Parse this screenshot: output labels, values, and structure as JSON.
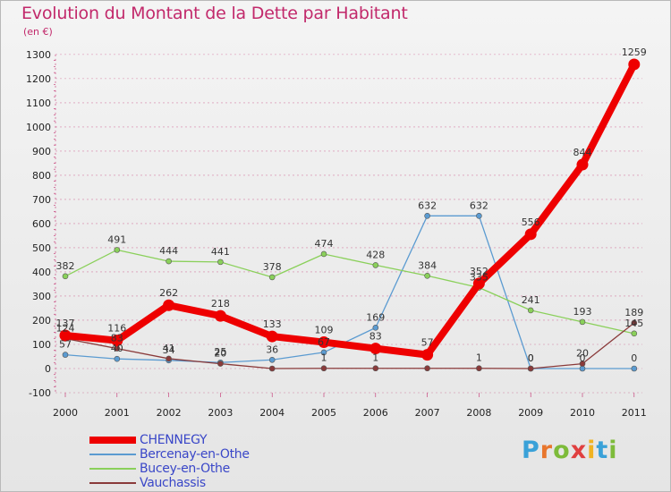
{
  "header": {
    "title": "Evolution du Montant de la Dette par Habitant",
    "subtitle": "(en €)"
  },
  "colors": {
    "title": "#c2296b",
    "legend_text": "#3a47c8",
    "grid": "#c2296b"
  },
  "logo": {
    "text": "Proxiti",
    "letter_colors": [
      "#3aa1d8",
      "#e8762d",
      "#7dbb3a",
      "#e04040",
      "#f0b323",
      "#3aa1d8",
      "#7dbb3a"
    ]
  },
  "chart_data": {
    "type": "line",
    "x": [
      "2000",
      "2001",
      "2002",
      "2003",
      "2004",
      "2005",
      "2006",
      "2007",
      "2008",
      "2009",
      "2010",
      "2011"
    ],
    "ylim": [
      -100,
      1300
    ],
    "yticks": [
      "-100",
      "0",
      "100",
      "200",
      "300",
      "400",
      "500",
      "600",
      "700",
      "800",
      "900",
      "1000",
      "1100",
      "1200",
      "1300"
    ],
    "grid": "horizontal dashed",
    "legend_position": "bottom-left",
    "series": [
      {
        "name": "CHENNEGY",
        "color": "#ee0000",
        "values": [
          137,
          116,
          262,
          218,
          133,
          109,
          83,
          57,
          352,
          556,
          844,
          1259
        ],
        "labels": [
          "137",
          "116",
          "262",
          "218",
          "133",
          "109",
          "83",
          "57",
          "352",
          "556",
          "844",
          "1259"
        ]
      },
      {
        "name": "Bercenay-en-Othe",
        "color": "#5b9bd1",
        "values": [
          57,
          40,
          34,
          25,
          36,
          67,
          169,
          632,
          632,
          0,
          0,
          0
        ],
        "labels": [
          "57",
          "40",
          "34",
          "25",
          "36",
          "67",
          "169",
          "632",
          "632",
          "0",
          "0",
          "0"
        ]
      },
      {
        "name": "Bucey-en-Othe",
        "color": "#8ad05a",
        "values": [
          382,
          491,
          444,
          441,
          378,
          474,
          428,
          384,
          335,
          241,
          193,
          145
        ],
        "labels": [
          "382",
          "491",
          "444",
          "441",
          "378",
          "474",
          "428",
          "384",
          "335",
          "241",
          "193",
          "145"
        ]
      },
      {
        "name": "Vauchassis",
        "color": "#8a3a3a",
        "values": [
          124,
          83,
          41,
          20,
          0,
          1,
          1,
          1,
          1,
          0,
          20,
          189
        ],
        "labels": [
          "124",
          "83",
          "41",
          "20",
          "",
          "1",
          "1",
          "",
          "1",
          "0",
          "20",
          "189"
        ]
      }
    ]
  }
}
